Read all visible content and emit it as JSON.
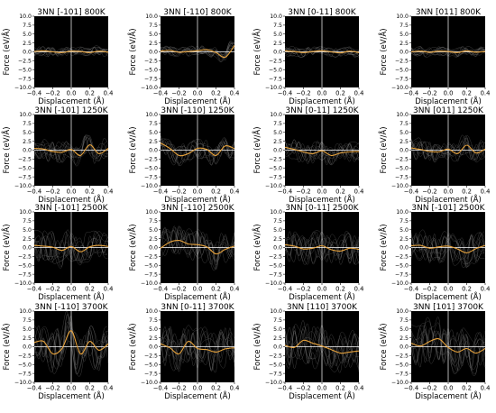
{
  "figure": {
    "rows": 4,
    "cols": 4,
    "colors": {
      "background": "#000000",
      "mean_curve": "#e6a23c",
      "sample_curves": "#8a8a8a",
      "zero_lines": "#ffffff",
      "text": "#000000"
    }
  },
  "chart_data": [
    {
      "type": "line",
      "title": "3NN [-101] 800K",
      "xlabel": "Displacement (Å)",
      "ylabel": "Force (eV/Å)",
      "xlim": [
        -0.4,
        0.4
      ],
      "ylim": [
        -10,
        10
      ],
      "xticks": [
        "−0.4",
        "−0.2",
        "0.0",
        "0.2",
        "0.4"
      ],
      "yticks": [
        "10.0",
        "7.5",
        "5.0",
        "2.5",
        "0.0",
        "−2.5",
        "−5.0",
        "−7.5",
        "−10.0"
      ],
      "grid": false,
      "series": [
        {
          "x": [
            -0.4,
            -0.3,
            -0.2,
            -0.1,
            0.0,
            0.1,
            0.2,
            0.3,
            0.4
          ],
          "values": [
            0.1,
            0.3,
            0.0,
            -0.2,
            0.2,
            0.1,
            -0.2,
            0.2,
            -0.1
          ]
        }
      ]
    },
    {
      "type": "line",
      "title": "3NN [-110] 800K",
      "xlabel": "Displacement (Å)",
      "ylabel": "Force (eV/Å)",
      "xlim": [
        -0.4,
        0.4
      ],
      "ylim": [
        -10,
        10
      ],
      "xticks": [
        "−0.4",
        "−0.2",
        "0.0",
        "0.2",
        "0.4"
      ],
      "yticks": [
        "10.0",
        "7.5",
        "5.0",
        "2.5",
        "0.0",
        "−2.5",
        "−5.0",
        "−7.5",
        "−10.0"
      ],
      "grid": false,
      "series": [
        {
          "x": [
            -0.4,
            -0.3,
            -0.2,
            -0.1,
            0.0,
            0.1,
            0.2,
            0.3,
            0.4
          ],
          "values": [
            0.2,
            0.4,
            -0.1,
            0.1,
            0.3,
            0.6,
            -0.2,
            -1.5,
            1.8
          ]
        }
      ]
    },
    {
      "type": "line",
      "title": "3NN [0-11] 800K",
      "xlabel": "Displacement (Å)",
      "ylabel": "Force (eV/Å)",
      "xlim": [
        -0.4,
        0.4
      ],
      "ylim": [
        -10,
        10
      ],
      "xticks": [
        "−0.4",
        "−0.2",
        "0.0",
        "0.2",
        "0.4"
      ],
      "yticks": [
        "10.0",
        "7.5",
        "5.0",
        "2.5",
        "0.0",
        "−2.5",
        "−5.0",
        "−7.5",
        "−10.0"
      ],
      "grid": false,
      "series": [
        {
          "x": [
            -0.4,
            -0.3,
            -0.2,
            -0.1,
            0.0,
            0.1,
            0.2,
            0.3,
            0.4
          ],
          "values": [
            0.3,
            0.1,
            -0.2,
            0.1,
            0.3,
            0.0,
            -0.3,
            0.2,
            -0.2
          ]
        }
      ]
    },
    {
      "type": "line",
      "title": "3NN [011] 800K",
      "xlabel": "Displacement (Å)",
      "ylabel": "Force (eV/Å)",
      "xlim": [
        -0.4,
        0.4
      ],
      "ylim": [
        -10,
        10
      ],
      "xticks": [
        "−0.4",
        "−0.2",
        "0.0",
        "0.2",
        "0.4"
      ],
      "yticks": [
        "10.0",
        "7.5",
        "5.0",
        "2.5",
        "0.0",
        "−2.5",
        "−5.0",
        "−7.5",
        "−10.0"
      ],
      "grid": false,
      "series": [
        {
          "x": [
            -0.4,
            -0.3,
            -0.2,
            -0.1,
            0.0,
            0.1,
            0.2,
            0.3,
            0.4
          ],
          "values": [
            0.0,
            0.2,
            -0.1,
            0.2,
            0.1,
            -0.2,
            0.3,
            -0.1,
            0.1
          ]
        }
      ]
    },
    {
      "type": "line",
      "title": "3NN [-101] 1250K",
      "xlabel": "Displacement (Å)",
      "ylabel": "Force (eV/Å)",
      "xlim": [
        -0.4,
        0.4
      ],
      "ylim": [
        -10,
        10
      ],
      "xticks": [
        "−0.4",
        "−0.2",
        "0.0",
        "0.2",
        "0.4"
      ],
      "yticks": [
        "10.0",
        "7.5",
        "5.0",
        "2.5",
        "0.0",
        "−2.5",
        "−5.0",
        "−7.5",
        "−10.0"
      ],
      "grid": false,
      "series": [
        {
          "x": [
            -0.4,
            -0.3,
            -0.2,
            -0.1,
            0.0,
            0.1,
            0.2,
            0.3,
            0.4
          ],
          "values": [
            0.5,
            0.3,
            -0.4,
            -0.6,
            0.2,
            -1.5,
            1.5,
            -1.0,
            0.5
          ]
        }
      ]
    },
    {
      "type": "line",
      "title": "3NN [-110] 1250K",
      "xlabel": "Displacement (Å)",
      "ylabel": "Force (eV/Å)",
      "xlim": [
        -0.4,
        0.4
      ],
      "ylim": [
        -10,
        10
      ],
      "xticks": [
        "−0.4",
        "−0.2",
        "0.0",
        "0.2",
        "0.4"
      ],
      "yticks": [
        "10.0",
        "7.5",
        "5.0",
        "2.5",
        "0.0",
        "−2.5",
        "−5.0",
        "−7.5",
        "−10.0"
      ],
      "grid": false,
      "series": [
        {
          "x": [
            -0.4,
            -0.3,
            -0.2,
            -0.1,
            0.0,
            0.1,
            0.2,
            0.3,
            0.4
          ],
          "values": [
            2.0,
            0.5,
            -1.5,
            -1.0,
            0.5,
            0.2,
            -1.5,
            1.2,
            0.4
          ]
        }
      ]
    },
    {
      "type": "line",
      "title": "3NN [0-11] 1250K",
      "xlabel": "Displacement (Å)",
      "ylabel": "Force (eV/Å)",
      "xlim": [
        -0.4,
        0.4
      ],
      "ylim": [
        -10,
        10
      ],
      "xticks": [
        "−0.4",
        "−0.2",
        "0.0",
        "0.2",
        "0.4"
      ],
      "yticks": [
        "10.0",
        "7.5",
        "5.0",
        "2.5",
        "0.0",
        "−2.5",
        "−5.0",
        "−7.5",
        "−10.0"
      ],
      "grid": false,
      "series": [
        {
          "x": [
            -0.4,
            -0.3,
            -0.2,
            -0.1,
            0.0,
            0.1,
            0.2,
            0.3,
            0.4
          ],
          "values": [
            0.8,
            0.2,
            -0.5,
            -1.0,
            -0.2,
            -1.5,
            -0.8,
            -0.5,
            -0.4
          ]
        }
      ]
    },
    {
      "type": "line",
      "title": "3NN [011] 1250K",
      "xlabel": "Displacement (Å)",
      "ylabel": "Force (eV/Å)",
      "xlim": [
        -0.4,
        0.4
      ],
      "ylim": [
        -10,
        10
      ],
      "xticks": [
        "−0.4",
        "−0.2",
        "0.0",
        "0.2",
        "0.4"
      ],
      "yticks": [
        "10.0",
        "7.5",
        "5.0",
        "2.5",
        "0.0",
        "−2.5",
        "−5.0",
        "−7.5",
        "−10.0"
      ],
      "grid": false,
      "series": [
        {
          "x": [
            -0.4,
            -0.3,
            -0.2,
            -0.1,
            0.0,
            0.1,
            0.2,
            0.3,
            0.4
          ],
          "values": [
            0.6,
            0.2,
            -0.4,
            -0.5,
            0.3,
            -1.0,
            1.4,
            -0.8,
            0.3
          ]
        }
      ]
    },
    {
      "type": "line",
      "title": "3NN [-101] 2500K",
      "xlabel": "Displacement (Å)",
      "ylabel": "Force (eV/Å)",
      "xlim": [
        -0.4,
        0.4
      ],
      "ylim": [
        -10,
        10
      ],
      "xticks": [
        "−0.4",
        "−0.2",
        "0.0",
        "0.2",
        "0.4"
      ],
      "yticks": [
        "10.0",
        "7.5",
        "5.0",
        "2.5",
        "0.0",
        "−2.5",
        "−5.0",
        "−7.5",
        "−10.0"
      ],
      "grid": false,
      "series": [
        {
          "x": [
            -0.4,
            -0.3,
            -0.2,
            -0.1,
            0.0,
            0.1,
            0.2,
            0.3,
            0.4
          ],
          "values": [
            0.6,
            0.4,
            0.1,
            -0.8,
            0.3,
            -1.2,
            0.2,
            0.6,
            0.3
          ]
        }
      ]
    },
    {
      "type": "line",
      "title": "3NN [-110] 2500K",
      "xlabel": "Displacement (Å)",
      "ylabel": "Force (eV/Å)",
      "xlim": [
        -0.4,
        0.4
      ],
      "ylim": [
        -10,
        10
      ],
      "xticks": [
        "−0.4",
        "−0.2",
        "0.0",
        "0.2",
        "0.4"
      ],
      "yticks": [
        "10.0",
        "7.5",
        "5.0",
        "2.5",
        "0.0",
        "−2.5",
        "−5.0",
        "−7.5",
        "−10.0"
      ],
      "grid": false,
      "series": [
        {
          "x": [
            -0.4,
            -0.3,
            -0.2,
            -0.1,
            0.0,
            0.1,
            0.2,
            0.3,
            0.4
          ],
          "values": [
            -0.2,
            1.5,
            2.0,
            1.0,
            0.8,
            0.2,
            -1.8,
            -0.5,
            0.4
          ]
        }
      ]
    },
    {
      "type": "line",
      "title": "3NN [0-11] 2500K",
      "xlabel": "Displacement (Å)",
      "ylabel": "Force (eV/Å)",
      "xlim": [
        -0.4,
        0.4
      ],
      "ylim": [
        -10,
        10
      ],
      "xticks": [
        "−0.4",
        "−0.2",
        "0.0",
        "0.2",
        "0.4"
      ],
      "yticks": [
        "10.0",
        "7.5",
        "5.0",
        "2.5",
        "0.0",
        "−2.5",
        "−5.0",
        "−7.5",
        "−10.0"
      ],
      "grid": false,
      "series": [
        {
          "x": [
            -0.4,
            -0.3,
            -0.2,
            -0.1,
            0.0,
            0.1,
            0.2,
            0.3,
            0.4
          ],
          "values": [
            0.8,
            0.4,
            -0.4,
            -0.2,
            0.5,
            -0.6,
            -1.0,
            -0.2,
            -0.5
          ]
        }
      ]
    },
    {
      "type": "line",
      "title": "3NN [-101] 2500K",
      "xlabel": "Displacement (Å)",
      "ylabel": "Force (eV/Å)",
      "xlim": [
        -0.4,
        0.4
      ],
      "ylim": [
        -10,
        10
      ],
      "xticks": [
        "−0.4",
        "−0.2",
        "0.0",
        "0.2",
        "0.4"
      ],
      "yticks": [
        "10.0",
        "7.5",
        "5.0",
        "2.5",
        "0.0",
        "−2.5",
        "−5.0",
        "−7.5",
        "−10.0"
      ],
      "grid": false,
      "series": [
        {
          "x": [
            -0.4,
            -0.3,
            -0.2,
            -0.1,
            0.0,
            0.1,
            0.2,
            0.3,
            0.4
          ],
          "values": [
            0.5,
            0.6,
            -0.2,
            0.2,
            0.4,
            -0.4,
            -1.5,
            -0.3,
            0.6
          ]
        }
      ]
    },
    {
      "type": "line",
      "title": "3NN [-110] 3700K",
      "xlabel": "Displacement (Å)",
      "ylabel": "Force (eV/Å)",
      "xlim": [
        -0.4,
        0.4
      ],
      "ylim": [
        -10,
        10
      ],
      "xticks": [
        "−0.4",
        "−0.2",
        "0.0",
        "0.2",
        "0.4"
      ],
      "yticks": [
        "10.0",
        "7.5",
        "5.0",
        "2.5",
        "0.0",
        "−2.5",
        "−5.0",
        "−7.5",
        "−10.0"
      ],
      "grid": false,
      "series": [
        {
          "x": [
            -0.4,
            -0.3,
            -0.2,
            -0.1,
            0.0,
            0.1,
            0.2,
            0.3,
            0.4
          ],
          "values": [
            1.2,
            1.5,
            -2.0,
            -0.5,
            4.5,
            -2.0,
            1.5,
            -1.0,
            0.8
          ]
        }
      ]
    },
    {
      "type": "line",
      "title": "3NN [0-11] 3700K",
      "xlabel": "Displacement (Å)",
      "ylabel": "Force (eV/Å)",
      "xlim": [
        -0.4,
        0.4
      ],
      "ylim": [
        -10,
        10
      ],
      "xticks": [
        "−0.4",
        "−0.2",
        "0.0",
        "0.2",
        "0.4"
      ],
      "yticks": [
        "10.0",
        "7.5",
        "5.0",
        "2.5",
        "0.0",
        "−2.5",
        "−5.0",
        "−7.5",
        "−10.0"
      ],
      "grid": false,
      "series": [
        {
          "x": [
            -0.4,
            -0.3,
            -0.2,
            -0.1,
            0.0,
            0.1,
            0.2,
            0.3,
            0.4
          ],
          "values": [
            0.8,
            -0.3,
            -2.0,
            1.5,
            -0.5,
            -0.8,
            -1.5,
            -0.6,
            -0.3
          ]
        }
      ]
    },
    {
      "type": "line",
      "title": "3NN [110] 3700K",
      "xlabel": "Displacement (Å)",
      "ylabel": "Force (eV/Å)",
      "xlim": [
        -0.4,
        0.4
      ],
      "ylim": [
        -10,
        10
      ],
      "xticks": [
        "−0.4",
        "−0.2",
        "0.0",
        "0.2",
        "0.4"
      ],
      "yticks": [
        "10.0",
        "7.5",
        "5.0",
        "2.5",
        "0.0",
        "−2.5",
        "−5.0",
        "−7.5",
        "−10.0"
      ],
      "grid": false,
      "series": [
        {
          "x": [
            -0.4,
            -0.3,
            -0.2,
            -0.1,
            0.0,
            0.1,
            0.2,
            0.3,
            0.4
          ],
          "values": [
            0.4,
            -0.2,
            1.8,
            1.0,
            0.2,
            -0.8,
            -1.8,
            -1.5,
            -1.2
          ]
        }
      ]
    },
    {
      "type": "line",
      "title": "3NN [101] 3700K",
      "xlabel": "Displacement (Å)",
      "ylabel": "Force (eV/Å)",
      "xlim": [
        -0.4,
        0.4
      ],
      "ylim": [
        -10,
        10
      ],
      "xticks": [
        "−0.4",
        "−0.2",
        "0.0",
        "0.2",
        "0.4"
      ],
      "yticks": [
        "10.0",
        "7.5",
        "5.0",
        "2.5",
        "0.0",
        "−2.5",
        "−5.0",
        "−7.5",
        "−10.0"
      ],
      "grid": false,
      "series": [
        {
          "x": [
            -0.4,
            -0.3,
            -0.2,
            -0.1,
            0.0,
            0.1,
            0.2,
            0.3,
            0.4
          ],
          "values": [
            1.0,
            0.2,
            1.5,
            2.2,
            -0.2,
            -1.5,
            -0.5,
            -1.8,
            -0.5
          ]
        }
      ]
    }
  ]
}
